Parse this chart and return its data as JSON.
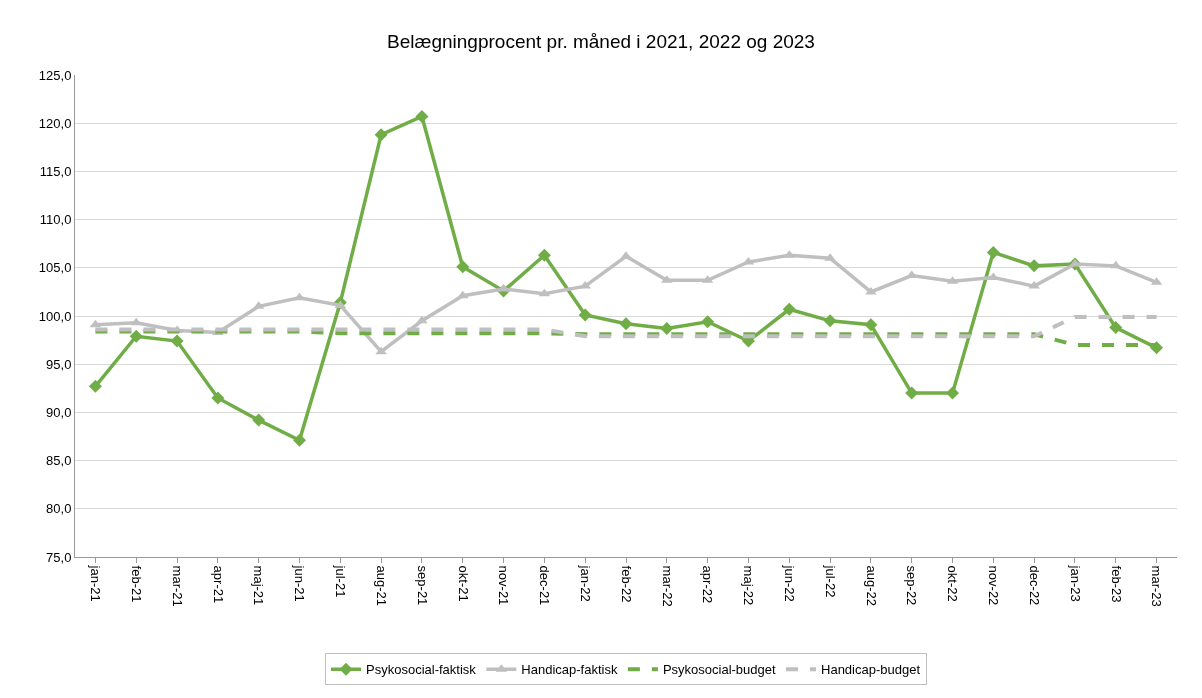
{
  "chart_data": {
    "type": "line",
    "title": "Belægningprocent pr. måned i 2021, 2022 og 2023",
    "categories": [
      "jan-21",
      "feb-21",
      "mar-21",
      "apr-21",
      "maj-21",
      "jun-21",
      "jul-21",
      "aug-21",
      "sep-21",
      "okt-21",
      "nov-21",
      "dec-21",
      "jan-22",
      "feb-22",
      "mar-22",
      "apr-22",
      "maj-22",
      "jun-22",
      "jul-22",
      "aug-22",
      "sep-22",
      "okt-22",
      "nov-22",
      "dec-22",
      "jan-23",
      "feb-23",
      "mar-23"
    ],
    "series": [
      {
        "name": "Psykosocial-faktisk",
        "color": "#70ad47",
        "marker": "diamond",
        "line_style": "solid",
        "values": [
          92.7,
          97.9,
          97.4,
          91.5,
          89.2,
          87.1,
          101.4,
          118.8,
          120.7,
          105.1,
          102.6,
          106.3,
          100.1,
          99.2,
          98.7,
          99.4,
          97.4,
          100.7,
          99.5,
          99.1,
          92.0,
          92.0,
          106.6,
          105.2,
          105.4,
          98.8,
          96.7
        ]
      },
      {
        "name": "Handicap-faktisk",
        "color": "#bfbfbf",
        "marker": "triangle",
        "line_style": "solid",
        "values": [
          99.1,
          99.3,
          98.5,
          98.3,
          101.0,
          101.9,
          101.1,
          96.3,
          99.5,
          102.1,
          102.8,
          102.3,
          103.1,
          106.2,
          103.7,
          103.7,
          105.6,
          106.3,
          106.0,
          102.5,
          104.2,
          103.6,
          104.0,
          103.1,
          105.4,
          105.2,
          103.5
        ]
      },
      {
        "name": "Psykosocial-budget",
        "color": "#70ad47",
        "marker": "none",
        "line_style": "dashed",
        "values": [
          98.4,
          98.4,
          98.4,
          98.4,
          98.4,
          98.4,
          98.2,
          98.2,
          98.2,
          98.2,
          98.2,
          98.2,
          98.1,
          98.1,
          98.1,
          98.1,
          98.1,
          98.1,
          98.1,
          98.1,
          98.1,
          98.1,
          98.1,
          98.1,
          97.0,
          97.0,
          97.0
        ]
      },
      {
        "name": "Handicap-budget",
        "color": "#bfbfbf",
        "marker": "none",
        "line_style": "dashed",
        "values": [
          98.6,
          98.6,
          98.6,
          98.6,
          98.6,
          98.6,
          98.6,
          98.6,
          98.6,
          98.6,
          98.6,
          98.6,
          97.9,
          97.9,
          97.9,
          97.9,
          97.9,
          97.9,
          97.9,
          97.9,
          97.9,
          97.9,
          97.9,
          97.9,
          99.9,
          99.9,
          99.9
        ]
      }
    ],
    "ylim": [
      75,
      125
    ],
    "yticks": [
      {
        "value": 75,
        "label": "75,0"
      },
      {
        "value": 80,
        "label": "80,0"
      },
      {
        "value": 85,
        "label": "85,0"
      },
      {
        "value": 90,
        "label": "90,0"
      },
      {
        "value": 95,
        "label": "95,0"
      },
      {
        "value": 100,
        "label": "100,0"
      },
      {
        "value": 105,
        "label": "105,0"
      },
      {
        "value": 110,
        "label": "110,0"
      },
      {
        "value": 115,
        "label": "115,0"
      },
      {
        "value": 120,
        "label": "120,0"
      },
      {
        "value": 125,
        "label": "125,0"
      }
    ],
    "grid": "y",
    "legend": "bottom"
  }
}
